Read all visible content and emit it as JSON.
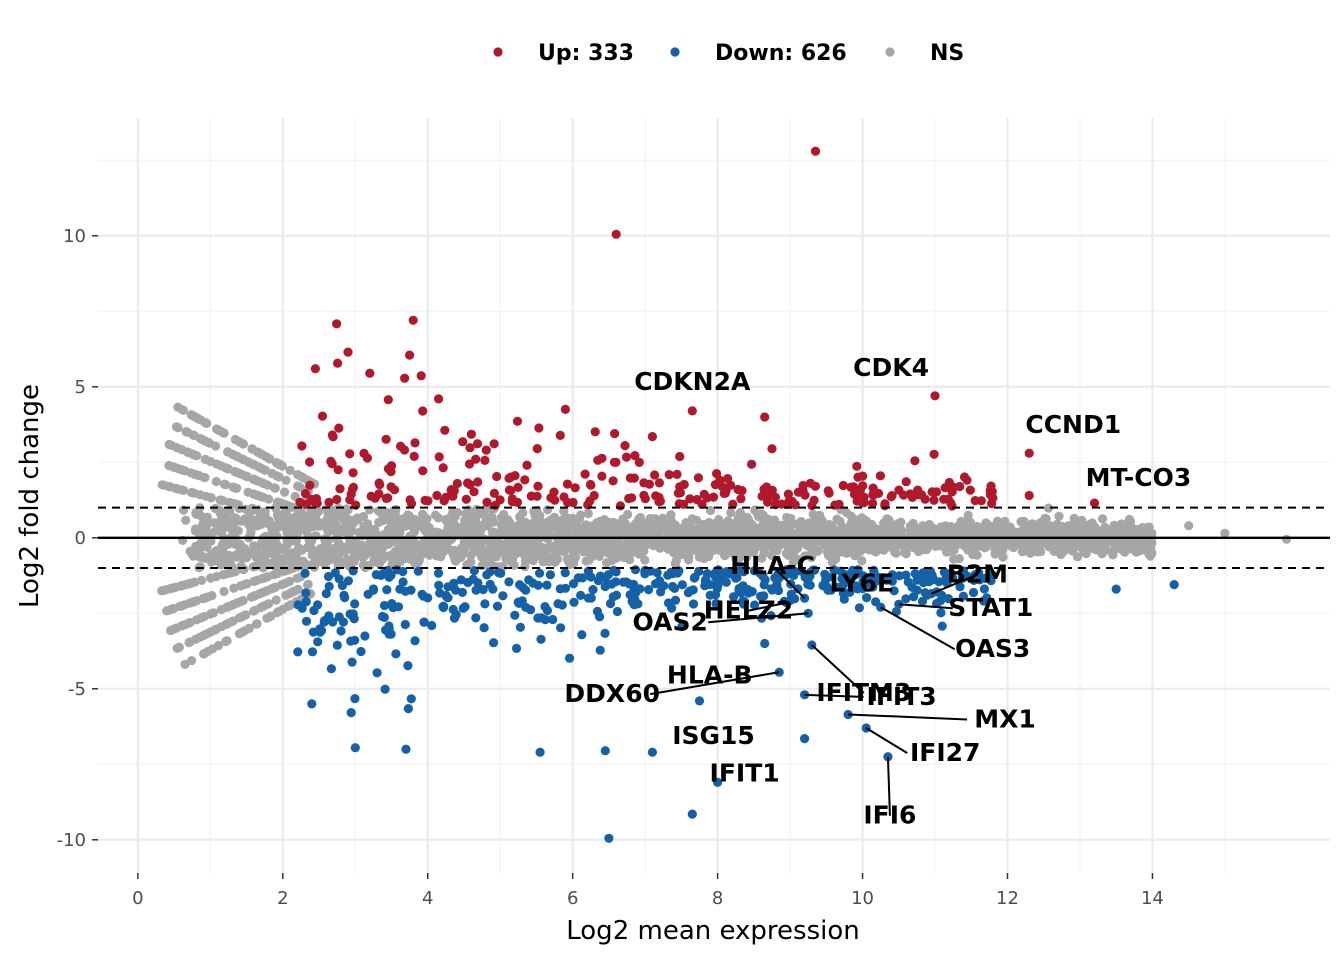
{
  "chart_data": {
    "type": "scatter",
    "title": "",
    "xlabel": "Log2 mean expression",
    "ylabel": "Log2 fold change",
    "xlim": [
      -0.55,
      16.45
    ],
    "ylim": [
      -11.1,
      13.9
    ],
    "xticks": [
      0,
      2,
      4,
      6,
      8,
      10,
      12,
      14
    ],
    "xtick_labels": [
      "0",
      "2",
      "4",
      "6",
      "8",
      "10",
      "12",
      "14"
    ],
    "yticks": [
      -10,
      -5,
      0,
      5,
      10
    ],
    "ytick_labels": [
      "-10",
      "-5",
      "0",
      "5",
      "10"
    ],
    "grid": true,
    "legend_position": "top",
    "reference_lines": {
      "solid": [
        0
      ],
      "dashed": [
        1,
        -1
      ]
    },
    "colors": {
      "up": "#b2182b",
      "down": "#1461a8",
      "ns": "#a6a6a6"
    },
    "legend": [
      {
        "key": "up",
        "label": "Up: 333"
      },
      {
        "key": "down",
        "label": "Down: 626"
      },
      {
        "key": "ns",
        "label": "NS"
      }
    ],
    "counts": {
      "up": 333,
      "down": 626
    },
    "labeled_genes": [
      {
        "gene": "CDKN2A",
        "x": 7.65,
        "y": 4.2,
        "group": "up"
      },
      {
        "gene": "CDK4",
        "x": 11.0,
        "y": 4.7,
        "group": "up"
      },
      {
        "gene": "CCND1",
        "x": 12.3,
        "y": 2.8,
        "group": "up"
      },
      {
        "gene": "MT-CO3",
        "x": 13.2,
        "y": 1.15,
        "group": "up"
      },
      {
        "gene": "HLA-C",
        "x": 9.2,
        "y": -2.0,
        "group": "down"
      },
      {
        "gene": "B2M",
        "x": 10.95,
        "y": -1.85,
        "group": "down"
      },
      {
        "gene": "LY6E",
        "x": 9.85,
        "y": -1.55,
        "group": "down"
      },
      {
        "gene": "HELZ2",
        "x": 8.95,
        "y": -2.15,
        "group": "down"
      },
      {
        "gene": "STAT1",
        "x": 10.5,
        "y": -2.2,
        "group": "down"
      },
      {
        "gene": "OAS2",
        "x": 9.25,
        "y": -2.5,
        "group": "down"
      },
      {
        "gene": "IFITM3",
        "x": 9.3,
        "y": -3.55,
        "group": "down"
      },
      {
        "gene": "OAS3",
        "x": 10.25,
        "y": -2.3,
        "group": "down"
      },
      {
        "gene": "HLA-B",
        "x": 8.65,
        "y": -3.5,
        "group": "down"
      },
      {
        "gene": "DDX60",
        "x": 8.85,
        "y": -4.45,
        "group": "down"
      },
      {
        "gene": "IFIT3",
        "x": 9.2,
        "y": -5.2,
        "group": "down"
      },
      {
        "gene": "ISG15",
        "x": 7.75,
        "y": -5.4,
        "group": "down"
      },
      {
        "gene": "MX1",
        "x": 9.8,
        "y": -5.85,
        "group": "down"
      },
      {
        "gene": "IFI27",
        "x": 10.05,
        "y": -6.3,
        "group": "down"
      },
      {
        "gene": "IFIT1",
        "x": 9.2,
        "y": -6.65,
        "group": "down"
      },
      {
        "gene": "IFI6",
        "x": 10.35,
        "y": -7.25,
        "group": "down"
      }
    ],
    "notable_points": [
      {
        "x": 9.35,
        "y": 12.8,
        "group": "up"
      },
      {
        "x": 6.6,
        "y": 10.05,
        "group": "up"
      },
      {
        "x": 3.8,
        "y": 7.2,
        "group": "up"
      },
      {
        "x": 2.9,
        "y": 6.15,
        "group": "up"
      },
      {
        "x": 3.75,
        "y": 6.05,
        "group": "up"
      },
      {
        "x": 2.45,
        "y": 5.6,
        "group": "up"
      },
      {
        "x": 3.2,
        "y": 5.45,
        "group": "up"
      },
      {
        "x": 4.15,
        "y": 4.6,
        "group": "up"
      },
      {
        "x": 8.65,
        "y": 4.0,
        "group": "up"
      },
      {
        "x": 8.75,
        "y": 2.95,
        "group": "up"
      },
      {
        "x": 5.9,
        "y": 4.25,
        "group": "up"
      },
      {
        "x": 7.1,
        "y": 3.35,
        "group": "up"
      },
      {
        "x": 12.3,
        "y": 1.4,
        "group": "up"
      },
      {
        "x": 6.5,
        "y": -9.95,
        "group": "down"
      },
      {
        "x": 7.65,
        "y": -9.15,
        "group": "down"
      },
      {
        "x": 8.0,
        "y": -8.1,
        "group": "down"
      },
      {
        "x": 3.7,
        "y": -7.0,
        "group": "down"
      },
      {
        "x": 5.55,
        "y": -7.1,
        "group": "down"
      },
      {
        "x": 6.45,
        "y": -7.05,
        "group": "down"
      },
      {
        "x": 7.1,
        "y": -7.1,
        "group": "down"
      },
      {
        "x": 3.0,
        "y": -6.95,
        "group": "down"
      },
      {
        "x": 2.4,
        "y": -5.5,
        "group": "down"
      },
      {
        "x": 14.3,
        "y": -1.55,
        "group": "down"
      },
      {
        "x": 13.5,
        "y": -1.7,
        "group": "down"
      },
      {
        "x": 15.85,
        "y": -0.05,
        "group": "ns"
      },
      {
        "x": 15.0,
        "y": 0.15,
        "group": "ns"
      },
      {
        "x": 14.5,
        "y": 0.4,
        "group": "ns"
      }
    ]
  }
}
